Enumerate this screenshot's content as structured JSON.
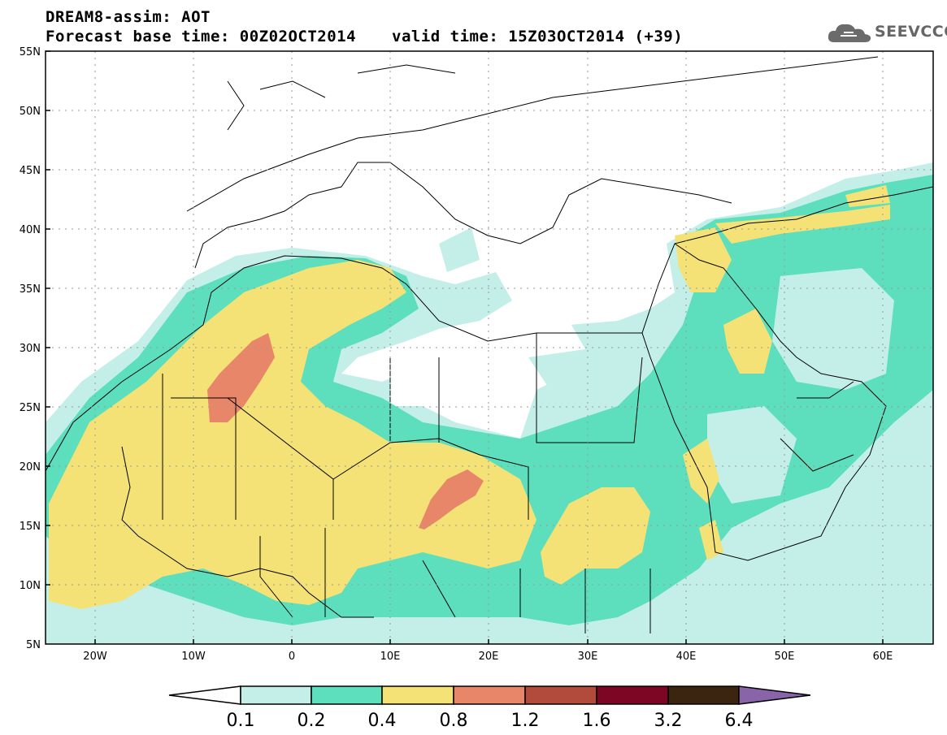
{
  "header": {
    "title": "DREAM8-assim: AOT",
    "base_time": "Forecast base time: 00Z02OCT2014",
    "valid_time": "valid time: 15Z03OCT2014 (+39)",
    "logo_text": "SEEVCCC",
    "logo_icon": "cloud-icon"
  },
  "map": {
    "lon_range": [
      -25,
      65
    ],
    "lat_range": [
      5,
      55
    ],
    "lat_labels": [
      "55N",
      "50N",
      "45N",
      "40N",
      "35N",
      "30N",
      "25N",
      "20N",
      "15N",
      "10N",
      "5N"
    ],
    "lon_labels": [
      "20W",
      "10W",
      "0",
      "10E",
      "20E",
      "30E",
      "40E",
      "50E",
      "60E"
    ],
    "grid": "dotted"
  },
  "legend": {
    "boundaries": [
      "0.1",
      "0.2",
      "0.4",
      "0.8",
      "1.2",
      "1.6",
      "3.2",
      "6.4"
    ],
    "colors": [
      "#ffffff",
      "#c4efe8",
      "#5ddfbd",
      "#f4e276",
      "#e8866a",
      "#b24b3c",
      "#7d0624",
      "#3b2410",
      "#8a64a8"
    ]
  },
  "chart_data": {
    "type": "heatmap",
    "variable": "AOT",
    "x_axis": "longitude",
    "y_axis": "latitude",
    "xlim": [
      -25,
      65
    ],
    "ylim": [
      5,
      55
    ],
    "levels": [
      0.1,
      0.2,
      0.4,
      0.8,
      1.2,
      1.6,
      3.2,
      6.4
    ]
  }
}
